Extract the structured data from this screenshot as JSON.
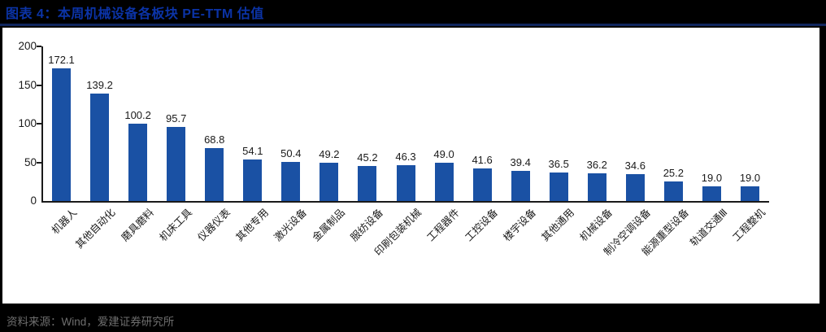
{
  "page": {
    "background": "#000000"
  },
  "header": {
    "title": "图表 4：本周机械设备各板块 PE-TTM 估值",
    "title_color": "#0B33A6",
    "rule_color": "#10265E"
  },
  "footer": {
    "source": "资料来源：Wind，爱建证券研究所",
    "text_color": "#6E6E6E"
  },
  "chart_data": {
    "type": "bar",
    "title": "本周机械设备各板块 PE-TTM 估值",
    "categories": [
      "机器人",
      "其他自动化",
      "磨具磨料",
      "机床工具",
      "仪器仪表",
      "其他专用",
      "激光设备",
      "金属制品",
      "服纺设备",
      "印刷包装机械",
      "工程器件",
      "工控设备",
      "楼宇设备",
      "其他通用",
      "机械设备",
      "制冷空调设备",
      "能源重型设备",
      "轨道交通Ⅲ",
      "工程整机"
    ],
    "values": [
      172.1,
      139.2,
      100.2,
      95.7,
      68.8,
      54.1,
      50.4,
      49.2,
      45.2,
      46.3,
      49.0,
      41.6,
      39.4,
      36.5,
      36.2,
      34.6,
      25.2,
      19.0,
      19.0
    ],
    "xlabel": "",
    "ylabel": "",
    "ylim": [
      0,
      200
    ],
    "yticks": [
      0,
      50,
      100,
      150,
      200
    ],
    "grid": false,
    "legend": "none",
    "value_labels": true,
    "bar_color": "#1A51A4",
    "value_label_color": "#1A1A1A",
    "axis_color": "#1A1A1A"
  }
}
